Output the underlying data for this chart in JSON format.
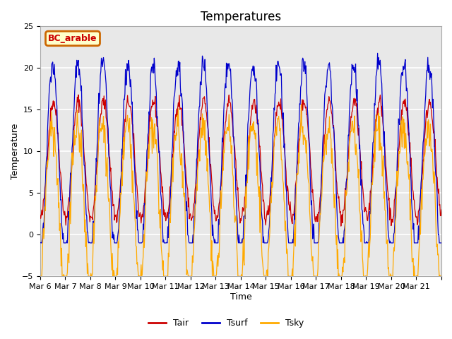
{
  "title": "Temperatures",
  "xlabel": "Time",
  "ylabel": "Temperature",
  "ylim": [
    -5,
    25
  ],
  "yticks": [
    -5,
    0,
    5,
    10,
    15,
    20,
    25
  ],
  "bg_color": "#e8e8e8",
  "line_colors": {
    "Tair": "#cc0000",
    "Tsurf": "#0000cc",
    "Tsky": "#ffaa00"
  },
  "legend_label": "BC_arable",
  "legend_bg": "#ffffcc",
  "legend_border": "#cc6600",
  "legend_text_color": "#cc0000",
  "xtick_labels": [
    "Mar 6",
    "Mar 7",
    "Mar 8",
    "Mar 9",
    "Mar 10",
    "Mar 11",
    "Mar 12",
    "Mar 13",
    "Mar 14",
    "Mar 15",
    "Mar 16",
    "Mar 17",
    "Mar 18",
    "Mar 19",
    "Mar 20",
    "Mar 21",
    ""
  ],
  "n_days": 16,
  "points_per_day": 48
}
